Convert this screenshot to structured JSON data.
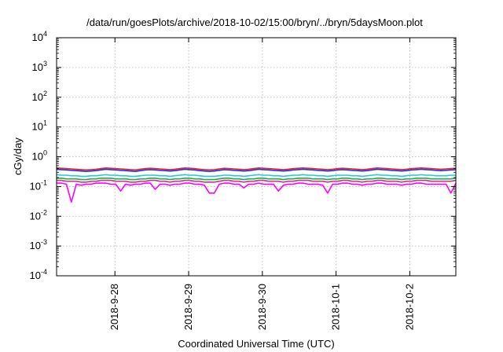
{
  "chart_data": {
    "type": "line",
    "title": "/data/run/goesPlots/archive/2018-10-02/15:00/bryn/../bryn/5daysMoon.plot",
    "xlabel": "Coordinated Universal Time (UTC)",
    "ylabel": "cGy/day",
    "yscale": "log",
    "ylim": [
      0.0001,
      10000
    ],
    "yticks": [
      {
        "base": "10",
        "exp": "-4"
      },
      {
        "base": "10",
        "exp": "-3"
      },
      {
        "base": "10",
        "exp": "-2"
      },
      {
        "base": "10",
        "exp": "-1"
      },
      {
        "base": "10",
        "exp": "0"
      },
      {
        "base": "10",
        "exp": "1"
      },
      {
        "base": "10",
        "exp": "2"
      },
      {
        "base": "10",
        "exp": "3"
      },
      {
        "base": "10",
        "exp": "4"
      }
    ],
    "xlim": [
      "2018-09-27T05:00",
      "2018-10-02T15:00"
    ],
    "xticks": [
      "2018-9-28",
      "2018-9-29",
      "2018-9-30",
      "2018-10-1",
      "2018-10-2"
    ],
    "grid": true,
    "series": [
      {
        "color": "#e8202a",
        "values": [
          0.42,
          0.41,
          0.4,
          0.39,
          0.38,
          0.37,
          0.36,
          0.37,
          0.38,
          0.4,
          0.42,
          0.41,
          0.4,
          0.39,
          0.38,
          0.37,
          0.36,
          0.38,
          0.4,
          0.41,
          0.4,
          0.39,
          0.38,
          0.37,
          0.38,
          0.4,
          0.42,
          0.41,
          0.4,
          0.38,
          0.37,
          0.36,
          0.37,
          0.39,
          0.41,
          0.4,
          0.39,
          0.38,
          0.37,
          0.38,
          0.4,
          0.42,
          0.41,
          0.4,
          0.39,
          0.38,
          0.37,
          0.38,
          0.4,
          0.41,
          0.42,
          0.41,
          0.4,
          0.39,
          0.38,
          0.37,
          0.38,
          0.4,
          0.41,
          0.4,
          0.39,
          0.38,
          0.37,
          0.38,
          0.4,
          0.42,
          0.41,
          0.4,
          0.39,
          0.38,
          0.37,
          0.38,
          0.4,
          0.41,
          0.42,
          0.41,
          0.4,
          0.39,
          0.38,
          0.39,
          0.4,
          0.41
        ]
      },
      {
        "color": "#2233dd",
        "values": [
          0.38,
          0.37,
          0.36,
          0.35,
          0.34,
          0.33,
          0.32,
          0.33,
          0.34,
          0.36,
          0.38,
          0.37,
          0.36,
          0.35,
          0.34,
          0.33,
          0.32,
          0.34,
          0.36,
          0.37,
          0.36,
          0.35,
          0.34,
          0.33,
          0.34,
          0.36,
          0.38,
          0.37,
          0.36,
          0.34,
          0.33,
          0.32,
          0.33,
          0.35,
          0.37,
          0.36,
          0.35,
          0.34,
          0.33,
          0.34,
          0.36,
          0.38,
          0.37,
          0.36,
          0.35,
          0.34,
          0.33,
          0.34,
          0.36,
          0.37,
          0.38,
          0.37,
          0.36,
          0.35,
          0.34,
          0.33,
          0.34,
          0.36,
          0.37,
          0.36,
          0.35,
          0.34,
          0.33,
          0.34,
          0.36,
          0.38,
          0.37,
          0.36,
          0.35,
          0.34,
          0.33,
          0.34,
          0.36,
          0.37,
          0.38,
          0.37,
          0.36,
          0.35,
          0.34,
          0.35,
          0.36,
          0.37
        ]
      },
      {
        "color": "#22cccc",
        "values": [
          0.25,
          0.24,
          0.24,
          0.23,
          0.23,
          0.22,
          0.22,
          0.23,
          0.23,
          0.24,
          0.25,
          0.24,
          0.24,
          0.23,
          0.23,
          0.22,
          0.22,
          0.23,
          0.24,
          0.24,
          0.24,
          0.23,
          0.23,
          0.22,
          0.23,
          0.24,
          0.25,
          0.24,
          0.24,
          0.23,
          0.22,
          0.22,
          0.22,
          0.23,
          0.24,
          0.24,
          0.23,
          0.23,
          0.22,
          0.23,
          0.24,
          0.25,
          0.24,
          0.24,
          0.23,
          0.23,
          0.22,
          0.23,
          0.24,
          0.24,
          0.25,
          0.24,
          0.24,
          0.23,
          0.23,
          0.22,
          0.23,
          0.24,
          0.24,
          0.24,
          0.23,
          0.23,
          0.22,
          0.23,
          0.24,
          0.25,
          0.24,
          0.24,
          0.23,
          0.23,
          0.22,
          0.23,
          0.24,
          0.24,
          0.25,
          0.24,
          0.24,
          0.23,
          0.23,
          0.23,
          0.24,
          0.24
        ]
      },
      {
        "color": "#22aa44",
        "values": [
          0.19,
          0.19,
          0.18,
          0.18,
          0.18,
          0.17,
          0.17,
          0.18,
          0.18,
          0.19,
          0.19,
          0.19,
          0.18,
          0.18,
          0.18,
          0.17,
          0.17,
          0.18,
          0.18,
          0.19,
          0.19,
          0.18,
          0.18,
          0.17,
          0.18,
          0.18,
          0.19,
          0.19,
          0.18,
          0.18,
          0.17,
          0.17,
          0.17,
          0.18,
          0.19,
          0.19,
          0.18,
          0.18,
          0.17,
          0.18,
          0.18,
          0.19,
          0.19,
          0.18,
          0.18,
          0.18,
          0.17,
          0.18,
          0.18,
          0.19,
          0.19,
          0.19,
          0.18,
          0.18,
          0.18,
          0.17,
          0.18,
          0.18,
          0.19,
          0.19,
          0.18,
          0.18,
          0.17,
          0.18,
          0.18,
          0.19,
          0.19,
          0.18,
          0.18,
          0.18,
          0.17,
          0.18,
          0.18,
          0.19,
          0.19,
          0.19,
          0.18,
          0.18,
          0.18,
          0.18,
          0.18,
          0.19
        ]
      },
      {
        "color": "#cc3388",
        "values": [
          0.16,
          0.16,
          0.15,
          0.15,
          0.15,
          0.14,
          0.14,
          0.15,
          0.15,
          0.16,
          0.16,
          0.16,
          0.15,
          0.15,
          0.15,
          0.14,
          0.14,
          0.15,
          0.15,
          0.16,
          0.16,
          0.15,
          0.15,
          0.14,
          0.15,
          0.15,
          0.16,
          0.16,
          0.15,
          0.15,
          0.14,
          0.14,
          0.14,
          0.15,
          0.16,
          0.16,
          0.15,
          0.15,
          0.14,
          0.15,
          0.15,
          0.16,
          0.16,
          0.15,
          0.15,
          0.15,
          0.14,
          0.15,
          0.15,
          0.16,
          0.16,
          0.16,
          0.15,
          0.15,
          0.15,
          0.14,
          0.15,
          0.15,
          0.16,
          0.16,
          0.15,
          0.15,
          0.14,
          0.15,
          0.15,
          0.16,
          0.16,
          0.15,
          0.15,
          0.15,
          0.14,
          0.15,
          0.15,
          0.16,
          0.16,
          0.16,
          0.15,
          0.15,
          0.15,
          0.15,
          0.15,
          0.16
        ]
      },
      {
        "color": "#ff00ff",
        "values": [
          0.13,
          0.13,
          0.12,
          0.03,
          0.12,
          0.11,
          0.12,
          0.12,
          0.13,
          0.13,
          0.13,
          0.12,
          0.12,
          0.07,
          0.12,
          0.11,
          0.12,
          0.12,
          0.13,
          0.13,
          0.08,
          0.12,
          0.12,
          0.11,
          0.12,
          0.12,
          0.13,
          0.13,
          0.12,
          0.12,
          0.11,
          0.06,
          0.06,
          0.12,
          0.13,
          0.13,
          0.12,
          0.12,
          0.09,
          0.12,
          0.12,
          0.13,
          0.12,
          0.12,
          0.12,
          0.07,
          0.11,
          0.12,
          0.12,
          0.13,
          0.13,
          0.12,
          0.12,
          0.12,
          0.11,
          0.06,
          0.12,
          0.12,
          0.13,
          0.13,
          0.12,
          0.12,
          0.11,
          0.12,
          0.12,
          0.13,
          0.13,
          0.12,
          0.12,
          0.12,
          0.11,
          0.12,
          0.12,
          0.13,
          0.13,
          0.12,
          0.12,
          0.12,
          0.12,
          0.12,
          0.06,
          0.13
        ]
      }
    ]
  }
}
